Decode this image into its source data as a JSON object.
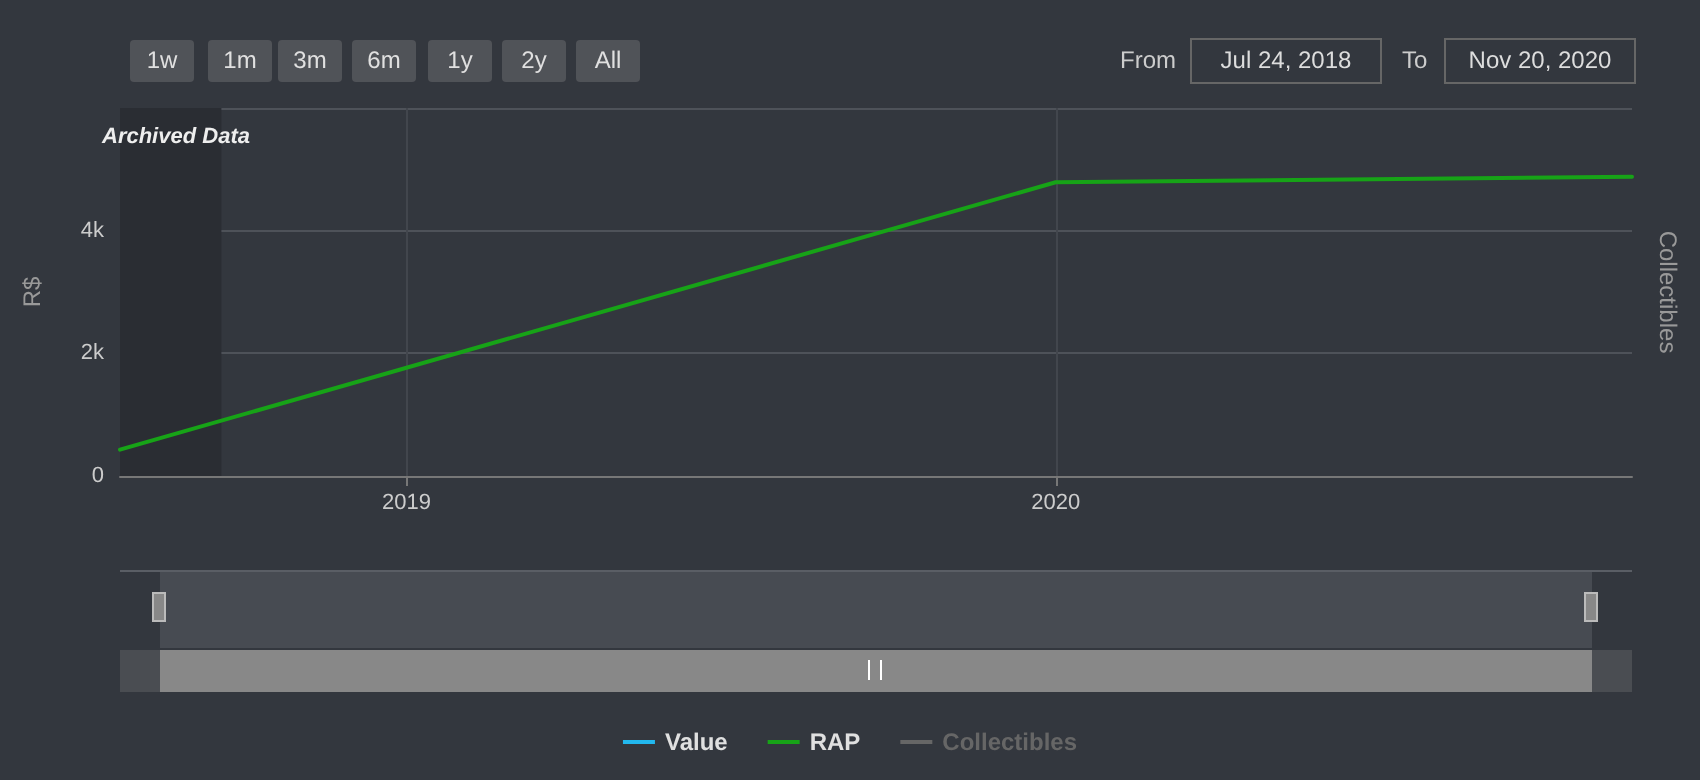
{
  "chart_data": {
    "type": "line",
    "ylabel": "R$",
    "y2label": "Collectibles",
    "x": [
      "2018-07-24",
      "2020-01-01",
      "2020-11-20"
    ],
    "series": [
      {
        "name": "Value",
        "color": "#22b8ee",
        "values": [
          null,
          null,
          null
        ]
      },
      {
        "name": "RAP",
        "color": "#17a317",
        "values": [
          430,
          4790,
          4880
        ]
      },
      {
        "name": "Collectibles",
        "color": "#666666",
        "axis": "y2",
        "values": [
          null,
          null,
          null
        ]
      }
    ],
    "xlim": [
      "2018-07-24",
      "2020-11-20"
    ],
    "xticks": [
      "2019",
      "2020"
    ],
    "ylim": [
      0,
      6000
    ],
    "yticks": [
      0,
      {
        "value": 2000,
        "label": "2k"
      },
      {
        "value": 4000,
        "label": "4k"
      },
      {
        "value": 6000,
        "label": null
      }
    ],
    "bands": [
      {
        "axis": "x",
        "from": "2018-07-24",
        "to": "2018-09-19",
        "label": "Archived Data",
        "color": "#2a2d33"
      }
    ],
    "annotations": [
      "1w",
      "1m",
      "3m",
      "6m",
      "1y",
      "2y",
      "All",
      "From",
      "Jul 24, 2018",
      "To",
      "Nov 20, 2020"
    ],
    "grid": true,
    "legend": "bottom",
    "marker": "none",
    "line_style": "solid"
  }
}
